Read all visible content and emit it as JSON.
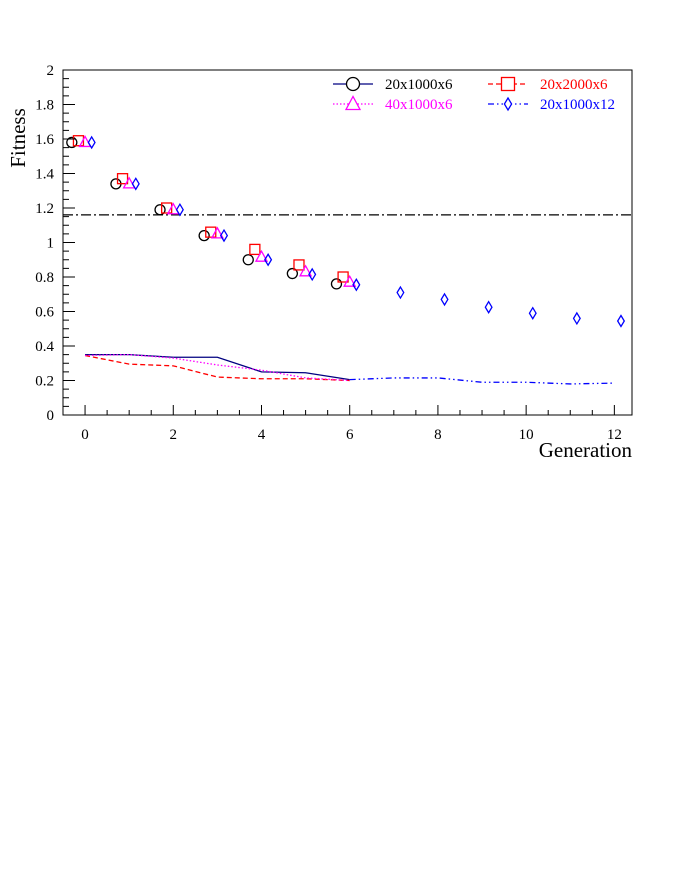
{
  "chart_data": {
    "type": "line",
    "xlabel": "Generation",
    "ylabel": "Fitness",
    "xlim": [
      -0.5,
      12.4
    ],
    "ylim": [
      0,
      2
    ],
    "xticks": [
      0,
      2,
      4,
      6,
      8,
      10,
      12
    ],
    "yticks": [
      0,
      0.2,
      0.4,
      0.6,
      0.8,
      1,
      1.2,
      1.4,
      1.6,
      1.8,
      2
    ],
    "reference_line": {
      "y": 1.16,
      "style": "dash-dot",
      "color": "#000000"
    },
    "grid": false,
    "legend_position": "top-right",
    "series": [
      {
        "name": "20x1000x6",
        "color": "#000000",
        "marker": "circle",
        "line_style": "solid",
        "line_color": "#000080",
        "marker_x": [
          -0.3,
          0.7,
          1.7,
          2.7,
          3.7,
          4.7,
          5.7
        ],
        "marker_y": [
          1.58,
          1.34,
          1.19,
          1.04,
          0.9,
          0.82,
          0.76
        ],
        "line_x": [
          0,
          1,
          2,
          3,
          4,
          5,
          6
        ],
        "line_y": [
          0.35,
          0.35,
          0.335,
          0.335,
          0.25,
          0.245,
          0.205
        ]
      },
      {
        "name": "20x2000x6",
        "color": "#ff0000",
        "marker": "square",
        "line_style": "dashed",
        "line_color": "#ff0000",
        "marker_x": [
          -0.15,
          0.85,
          1.85,
          2.85,
          3.85,
          4.85,
          5.85
        ],
        "marker_y": [
          1.59,
          1.37,
          1.2,
          1.06,
          0.96,
          0.87,
          0.8
        ],
        "line_x": [
          0,
          1,
          2,
          3,
          4,
          5,
          6
        ],
        "line_y": [
          0.345,
          0.295,
          0.285,
          0.22,
          0.21,
          0.21,
          0.2
        ]
      },
      {
        "name": "40x1000x6",
        "color": "#ff00ff",
        "marker": "triangle",
        "line_style": "dotted",
        "line_color": "#ff00ff",
        "marker_x": [
          0,
          1,
          2,
          3,
          4,
          5,
          6
        ],
        "marker_y": [
          1.58,
          1.34,
          1.19,
          1.05,
          0.915,
          0.83,
          0.77
        ],
        "line_x": [
          0,
          1,
          2,
          3,
          4,
          5,
          6
        ],
        "line_y": [
          0.345,
          0.35,
          0.33,
          0.29,
          0.26,
          0.215,
          0.2
        ]
      },
      {
        "name": "20x1000x12",
        "color": "#0000ff",
        "marker": "diamond",
        "line_style": "dash-dot-dot",
        "line_color": "#0000ff",
        "marker_x": [
          0.15,
          1.15,
          2.15,
          3.15,
          4.15,
          5.15,
          6.15,
          7.15,
          8.15,
          9.15,
          10.15,
          11.15,
          12.15
        ],
        "marker_y": [
          1.58,
          1.34,
          1.19,
          1.04,
          0.9,
          0.815,
          0.755,
          0.71,
          0.67,
          0.625,
          0.59,
          0.56,
          0.545
        ],
        "line_x": [
          6,
          7,
          8,
          9,
          10,
          11,
          12
        ],
        "line_y": [
          0.205,
          0.215,
          0.215,
          0.19,
          0.19,
          0.18,
          0.185
        ]
      }
    ]
  }
}
